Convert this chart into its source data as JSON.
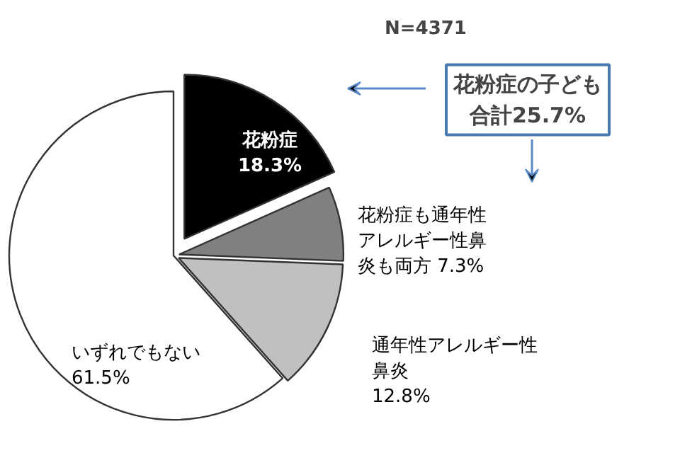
{
  "chart_data": {
    "type": "pie",
    "categories": [
      "花粉症",
      "花粉症も通年性アレルギー性鼻炎も両方",
      "通年性アレルギー性鼻炎",
      "いずれでもない"
    ],
    "values": [
      18.3,
      7.3,
      12.8,
      61.5
    ],
    "value_labels": [
      "18.3%",
      "7.3%",
      "12.8%",
      "61.5%"
    ],
    "colors": [
      "#000000",
      "#808080",
      "#c0c0c0",
      "#ffffff"
    ],
    "annotations": [
      "N=4371",
      "花粉症の子ども合計25.7%"
    ]
  }
}
